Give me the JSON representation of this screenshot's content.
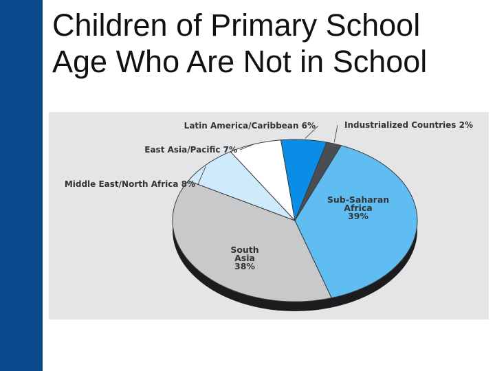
{
  "slide": {
    "title_line1": "Children of Primary School",
    "title_line2": "Age Who Are Not in School"
  },
  "chart_data": {
    "type": "pie",
    "title": "Children of Primary School Age Who Are Not in School",
    "unit": "%",
    "slices": [
      {
        "label": "Industrialized Countries",
        "value": 2,
        "color": "#4a4d52",
        "label_lines": [
          "Industrialized Countries 2%"
        ]
      },
      {
        "label": "Sub-Saharan Africa",
        "value": 39,
        "color": "#5fbdf2",
        "label_lines": [
          "Sub-Saharan",
          "Africa",
          "39%"
        ]
      },
      {
        "label": "South Asia",
        "value": 38,
        "color": "#c8c9cb",
        "label_lines": [
          "South",
          "Asia",
          "38%"
        ]
      },
      {
        "label": "Middle East/North Africa",
        "value": 8,
        "color": "#cfeafb",
        "label_lines": [
          "Middle East/North Africa 8%"
        ]
      },
      {
        "label": "East Asia/Pacific",
        "value": 7,
        "color": "#ffffff",
        "label_lines": [
          "East Asia/Pacific 7%"
        ]
      },
      {
        "label": "Latin America/Caribbean",
        "value": 6,
        "color": "#0a8de6",
        "label_lines": [
          "Latin America/Caribbean 6%"
        ]
      }
    ]
  }
}
